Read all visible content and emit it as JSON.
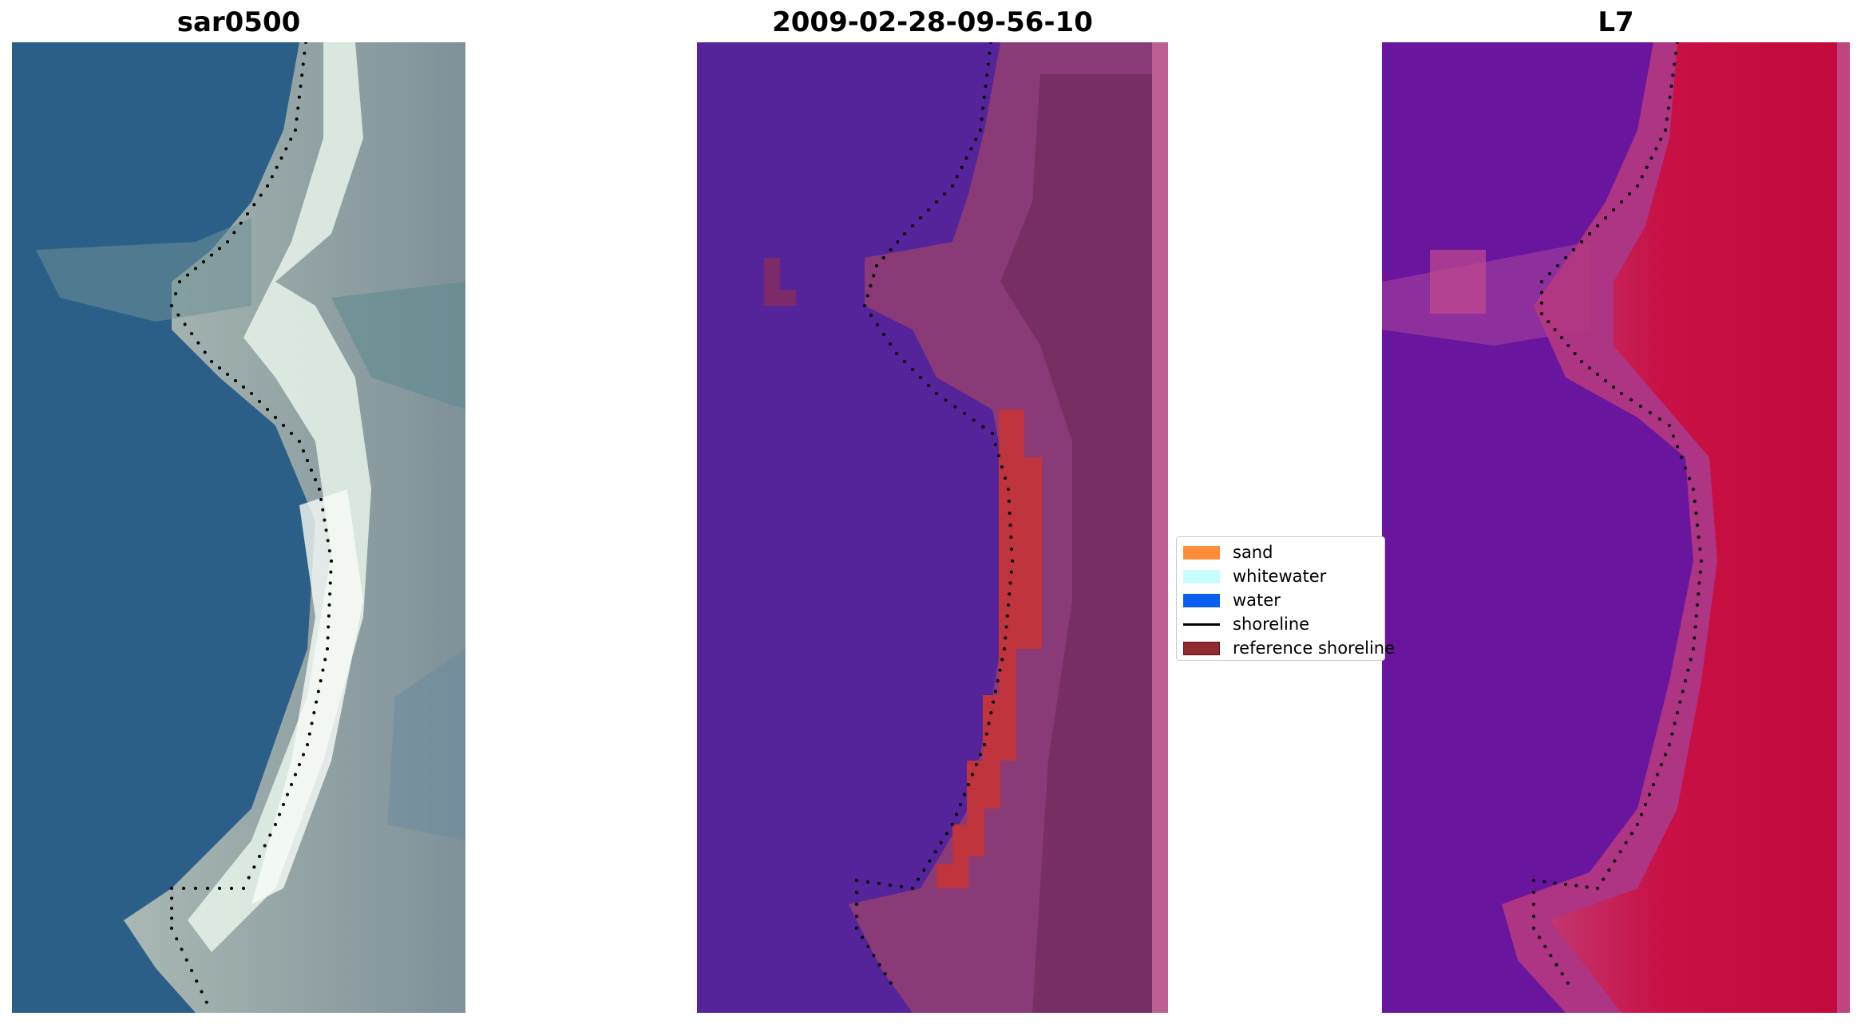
{
  "panels": [
    {
      "title": "sar0500",
      "kind": "rgb"
    },
    {
      "title": "2009-02-28-09-56-10",
      "kind": "classification"
    },
    {
      "title": "L7",
      "kind": "index"
    }
  ],
  "legend": {
    "items": [
      {
        "label": "sand",
        "type": "patch",
        "color": "#ff8c3a"
      },
      {
        "label": "whitewater",
        "type": "patch",
        "color": "#c7fdff"
      },
      {
        "label": "water",
        "type": "patch",
        "color": "#0a5ff0"
      },
      {
        "label": "shoreline",
        "type": "line",
        "color": "#000000"
      },
      {
        "label": "reference shoreline",
        "type": "patch",
        "color": "#8e2a30"
      }
    ]
  },
  "colors": {
    "water_blue": "#2a5f8c",
    "water_class": "#55239a",
    "land_class": "#7d2b68",
    "sand_class": "#c0343e",
    "index_low": "#6a159e",
    "index_high": "#c8103c"
  }
}
